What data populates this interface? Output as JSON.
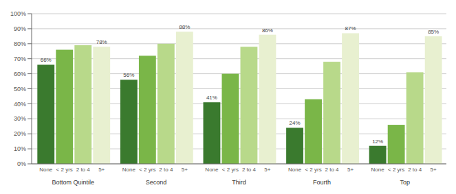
{
  "chart_data": {
    "type": "bar",
    "categories": [
      "Bottom Quintile",
      "Second",
      "Third",
      "Fourth",
      "Top"
    ],
    "series": [
      {
        "name": "None",
        "color": "#3a7a2e",
        "values": [
          66,
          56,
          41,
          24,
          12
        ],
        "value_labels": [
          "66%",
          "56%",
          "41%",
          "24%",
          "12%"
        ]
      },
      {
        "name": "< 2 yrs",
        "color": "#7ab648",
        "values": [
          76,
          72,
          60,
          43,
          26
        ]
      },
      {
        "name": "2 to 4",
        "color": "#b8d98a",
        "values": [
          79,
          80,
          78,
          68,
          61
        ]
      },
      {
        "name": "5+",
        "color": "#e8f0d0",
        "values": [
          78,
          88,
          86,
          87,
          85
        ],
        "value_labels": [
          "78%",
          "88%",
          "86%",
          "87%",
          "85%"
        ]
      }
    ],
    "ylim": [
      0,
      100
    ],
    "yticks": [
      {
        "value": 0,
        "label": "0%"
      },
      {
        "value": 10,
        "label": "10%"
      },
      {
        "value": 20,
        "label": "20%"
      },
      {
        "value": 30,
        "label": "30%"
      },
      {
        "value": 40,
        "label": "40%"
      },
      {
        "value": 50,
        "label": "50%"
      },
      {
        "value": 60,
        "label": "60%"
      },
      {
        "value": 70,
        "label": "70%"
      },
      {
        "value": 80,
        "label": "80%"
      },
      {
        "value": 90,
        "label": "90%"
      },
      {
        "value": 100,
        "label": "100%"
      }
    ],
    "grid": true,
    "data_labels": true
  }
}
